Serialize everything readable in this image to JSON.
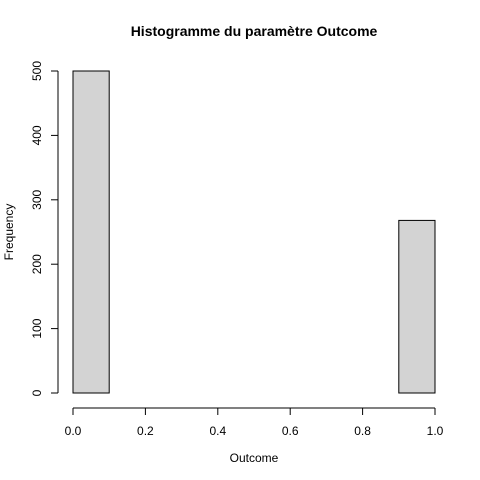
{
  "chart_data": {
    "type": "bar",
    "title": "Histogramme du paramètre Outcome",
    "xlabel": "Outcome",
    "ylabel": "Frequency",
    "bins": [
      {
        "start": 0.0,
        "end": 0.1,
        "value": 500
      },
      {
        "start": 0.1,
        "end": 0.2,
        "value": 0
      },
      {
        "start": 0.2,
        "end": 0.3,
        "value": 0
      },
      {
        "start": 0.3,
        "end": 0.4,
        "value": 0
      },
      {
        "start": 0.4,
        "end": 0.5,
        "value": 0
      },
      {
        "start": 0.5,
        "end": 0.6,
        "value": 0
      },
      {
        "start": 0.6,
        "end": 0.7,
        "value": 0
      },
      {
        "start": 0.7,
        "end": 0.8,
        "value": 0
      },
      {
        "start": 0.8,
        "end": 0.9,
        "value": 0
      },
      {
        "start": 0.9,
        "end": 1.0,
        "value": 268
      }
    ],
    "xlim": [
      0,
      1
    ],
    "ylim": [
      0,
      500
    ],
    "xticks": [
      "0.0",
      "0.2",
      "0.4",
      "0.6",
      "0.8",
      "1.0"
    ],
    "yticks": [
      "0",
      "100",
      "200",
      "300",
      "400",
      "500"
    ],
    "bar_color": "#d3d3d3",
    "grid": false,
    "legend": "none"
  }
}
